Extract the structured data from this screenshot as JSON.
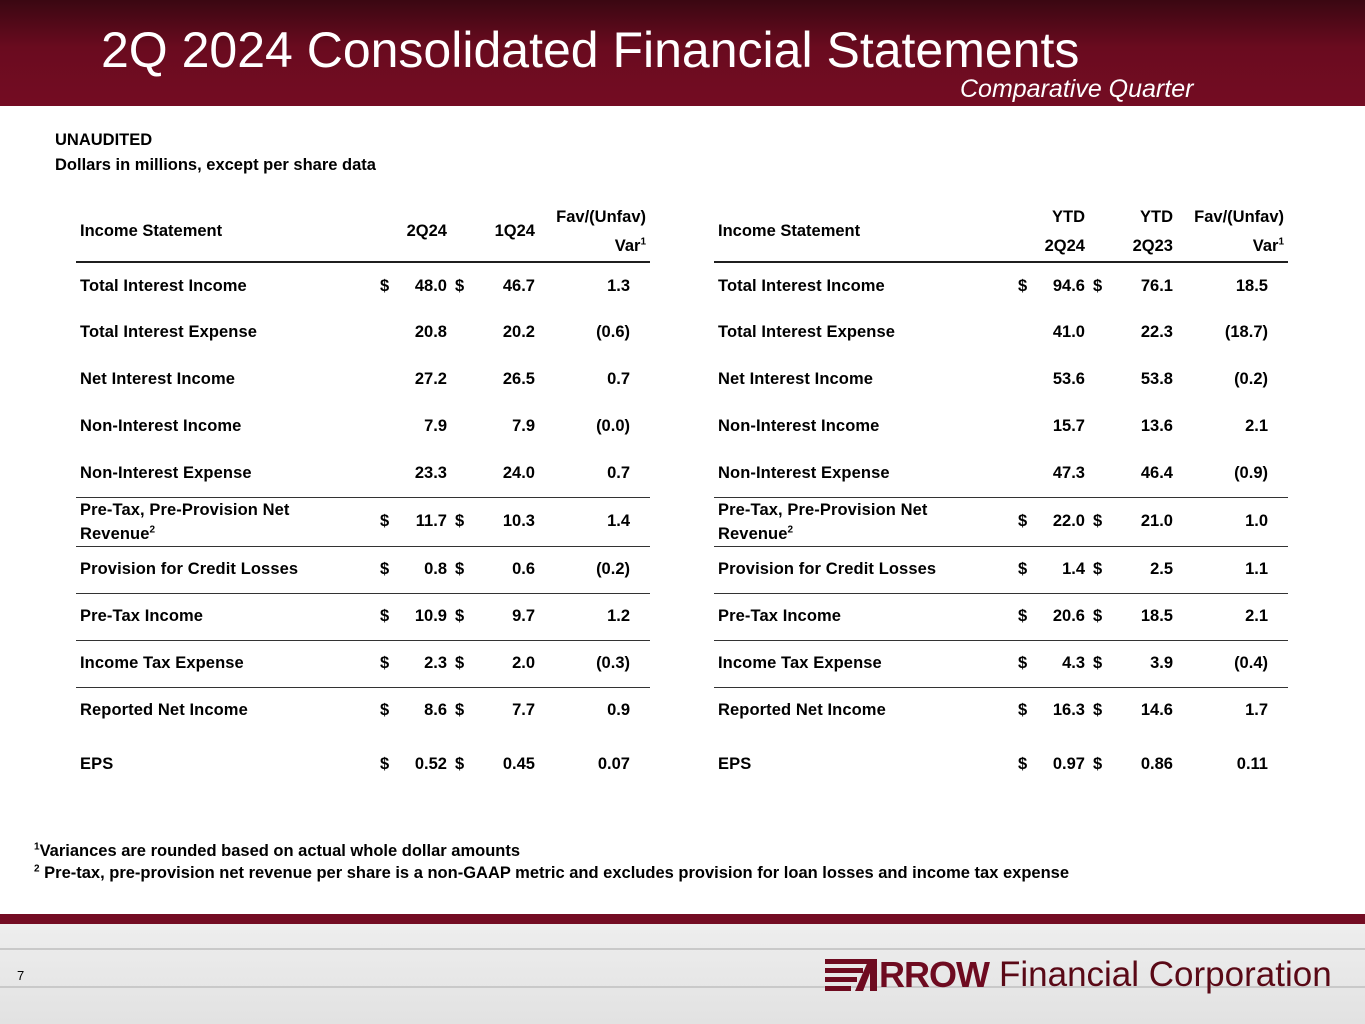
{
  "header": {
    "title": "2Q 2024 Consolidated Financial Statements",
    "subtitle": "Comparative Quarter"
  },
  "meta": {
    "line1": "UNAUDITED",
    "line2": "Dollars in millions, except per share data"
  },
  "left_table": {
    "headers": {
      "label": "Income Statement",
      "col1": "2Q24",
      "col2": "1Q24",
      "var_line1": "Fav/(Unfav)",
      "var_line2": "Var",
      "var_sup": "1"
    },
    "rows": [
      {
        "label": "Total Interest Income",
        "c1": "$",
        "v1": "48.0",
        "c2": "$",
        "v2": "46.7",
        "var": "1.3"
      },
      {
        "label": "Total Interest Expense",
        "c1": "",
        "v1": "20.8",
        "c2": "",
        "v2": "20.2",
        "var": "(0.6)"
      },
      {
        "label": "Net Interest Income",
        "c1": "",
        "v1": "27.2",
        "c2": "",
        "v2": "26.5",
        "var": "0.7"
      },
      {
        "label": "Non-Interest Income",
        "c1": "",
        "v1": "7.9",
        "c2": "",
        "v2": "7.9",
        "var": "(0.0)"
      },
      {
        "label": "Non-Interest Expense",
        "c1": "",
        "v1": "23.3",
        "c2": "",
        "v2": "24.0",
        "var": "0.7"
      },
      {
        "label_line1": "Pre-Tax, Pre-Provision Net",
        "label_line2": "Revenue",
        "label_sup": "2",
        "c1": "$",
        "v1": "11.7",
        "c2": "$",
        "v2": "10.3",
        "var": "1.4"
      },
      {
        "label": "Provision for Credit Losses",
        "c1": "$",
        "v1": "0.8",
        "c2": "$",
        "v2": "0.6",
        "var": "(0.2)"
      },
      {
        "label": "Pre-Tax Income",
        "c1": "$",
        "v1": "10.9",
        "c2": "$",
        "v2": "9.7",
        "var": "1.2"
      },
      {
        "label": "Income Tax Expense",
        "c1": "$",
        "v1": "2.3",
        "c2": "$",
        "v2": "2.0",
        "var": "(0.3)"
      },
      {
        "label": "Reported Net Income",
        "c1": "$",
        "v1": "8.6",
        "c2": "$",
        "v2": "7.7",
        "var": "0.9"
      },
      {
        "label": "EPS",
        "c1": "$",
        "v1": "0.52",
        "c2": "$",
        "v2": "0.45",
        "var": "0.07"
      }
    ]
  },
  "right_table": {
    "headers": {
      "label": "Income Statement",
      "col1_line1": "YTD",
      "col1_line2": "2Q24",
      "col2_line1": "YTD",
      "col2_line2": "2Q23",
      "var_line1": "Fav/(Unfav)",
      "var_line2": "Var",
      "var_sup": "1"
    },
    "rows": [
      {
        "label": "Total Interest Income",
        "c1": "$",
        "v1": "94.6",
        "c2": "$",
        "v2": "76.1",
        "var": "18.5"
      },
      {
        "label": "Total Interest Expense",
        "c1": "",
        "v1": "41.0",
        "c2": "",
        "v2": "22.3",
        "var": "(18.7)"
      },
      {
        "label": "Net Interest Income",
        "c1": "",
        "v1": "53.6",
        "c2": "",
        "v2": "53.8",
        "var": "(0.2)"
      },
      {
        "label": "Non-Interest Income",
        "c1": "",
        "v1": "15.7",
        "c2": "",
        "v2": "13.6",
        "var": "2.1"
      },
      {
        "label": "Non-Interest Expense",
        "c1": "",
        "v1": "47.3",
        "c2": "",
        "v2": "46.4",
        "var": "(0.9)"
      },
      {
        "label_line1": "Pre-Tax, Pre-Provision Net",
        "label_line2": "Revenue",
        "label_sup": "2",
        "c1": "$",
        "v1": "22.0",
        "c2": "$",
        "v2": "21.0",
        "var": "1.0"
      },
      {
        "label": "Provision for Credit Losses",
        "c1": "$",
        "v1": "1.4",
        "c2": "$",
        "v2": "2.5",
        "var": "1.1"
      },
      {
        "label": "Pre-Tax Income",
        "c1": "$",
        "v1": "20.6",
        "c2": "$",
        "v2": "18.5",
        "var": "2.1"
      },
      {
        "label": "Income Tax Expense",
        "c1": "$",
        "v1": "4.3",
        "c2": "$",
        "v2": "3.9",
        "var": "(0.4)"
      },
      {
        "label": "Reported Net Income",
        "c1": "$",
        "v1": "16.3",
        "c2": "$",
        "v2": "14.6",
        "var": "1.7"
      },
      {
        "label": "EPS",
        "c1": "$",
        "v1": "0.97",
        "c2": "$",
        "v2": "0.86",
        "var": "0.11"
      }
    ]
  },
  "footnotes": {
    "fn1_mark": "1",
    "fn1_text": "Variances are rounded based on actual whole dollar amounts",
    "fn2_mark": "2",
    "fn2_text": " Pre-tax, pre-provision net revenue per share is a non-GAAP metric and excludes provision for loan losses and income tax expense"
  },
  "footer": {
    "page_number": "7",
    "logo_word": "RROW",
    "logo_rest": "Financial Corporation",
    "brand_color": "#740c23"
  }
}
